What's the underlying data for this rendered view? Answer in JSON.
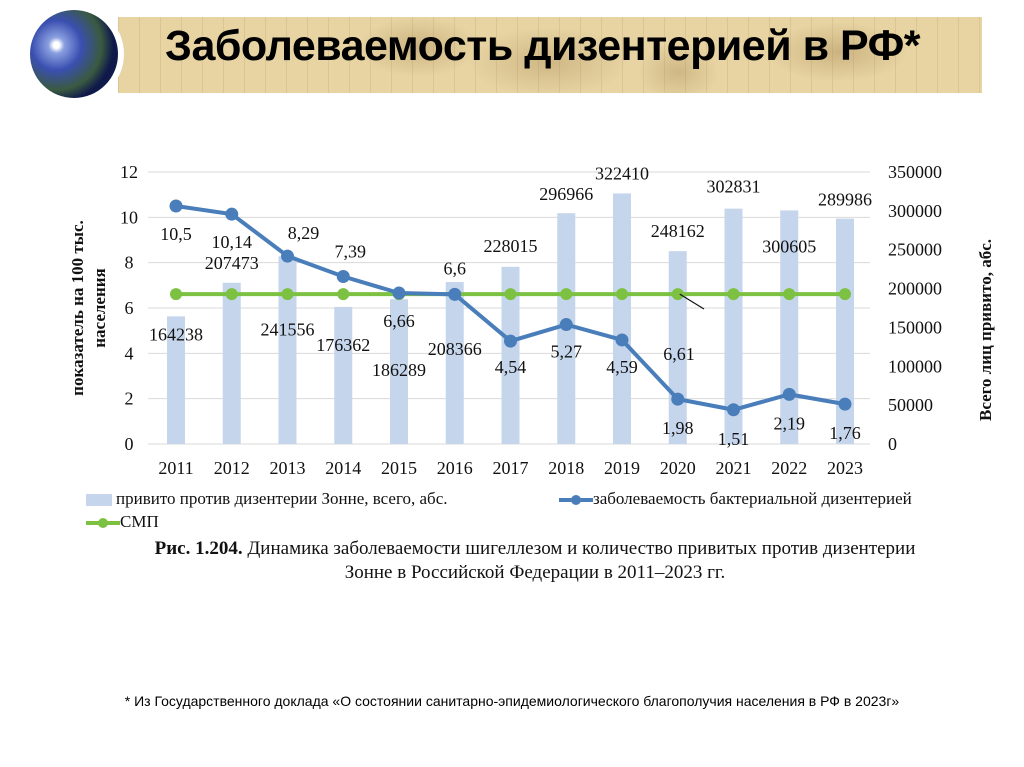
{
  "slide": {
    "title": "Заболеваемость дизентерией в РФ*",
    "footnote": "* Из Государственного доклада «О состоянии санитарно-эпидемиологического благополучия населения в РФ в 2023г»",
    "caption_bold": "Рис. 1.204.",
    "caption_line1": " Динамика заболеваемости шигеллезом и количество привитых против дизентерии",
    "caption_line2": "Зонне в Российской Федерации в 2011–2023 гг."
  },
  "chart_data": {
    "type": "bar+line",
    "categories": [
      "2011",
      "2012",
      "2013",
      "2014",
      "2015",
      "2016",
      "2017",
      "2018",
      "2019",
      "2020",
      "2021",
      "2022",
      "2023"
    ],
    "ylabel_left": "показатель на 100 тыс. населения",
    "ylabel_right": "Всего лиц привито, абс.",
    "ylim_left": [
      0,
      12
    ],
    "ylim_right": [
      0,
      350000
    ],
    "yticks_left": [
      "0",
      "2",
      "4",
      "6",
      "8",
      "10",
      "12"
    ],
    "yticks_right": [
      "0",
      "50000",
      "100000",
      "150000",
      "200000",
      "250000",
      "300000",
      "350000"
    ],
    "grid": true,
    "legend_position": "bottom",
    "series": [
      {
        "name": "привито против дизентерии Зонне, всего, абс.",
        "type": "bar",
        "axis": "right",
        "color": "#c5d6ec",
        "values": [
          164238,
          207473,
          241556,
          176362,
          186289,
          208366,
          228015,
          296966,
          322410,
          248162,
          302831,
          300605,
          289986
        ],
        "labels": [
          "164238",
          "207473",
          "241556",
          "176362",
          "186289",
          "208366",
          "228015",
          "296966",
          "322410",
          "248162",
          "302831",
          "300605",
          "289986"
        ]
      },
      {
        "name": "заболеваемость бактериальной дизентерией",
        "type": "line",
        "axis": "left",
        "color": "#4a7ebb",
        "values": [
          10.5,
          10.14,
          8.29,
          7.39,
          6.66,
          6.6,
          4.54,
          5.27,
          4.59,
          1.98,
          1.51,
          2.19,
          1.76
        ],
        "labels": [
          "10,5",
          "10,14",
          "8,29",
          "7,39",
          "6,66",
          "6,6",
          "4,54",
          "5,27",
          "4,59",
          "1,98",
          "1,51",
          "2,19",
          "1,76"
        ]
      },
      {
        "name": "СМП",
        "type": "line",
        "axis": "left",
        "color": "#7dc142",
        "values": [
          6.61,
          6.61,
          6.61,
          6.61,
          6.61,
          6.61,
          6.61,
          6.61,
          6.61,
          6.61,
          6.61,
          6.61,
          6.61
        ],
        "label": "6,61"
      }
    ]
  }
}
